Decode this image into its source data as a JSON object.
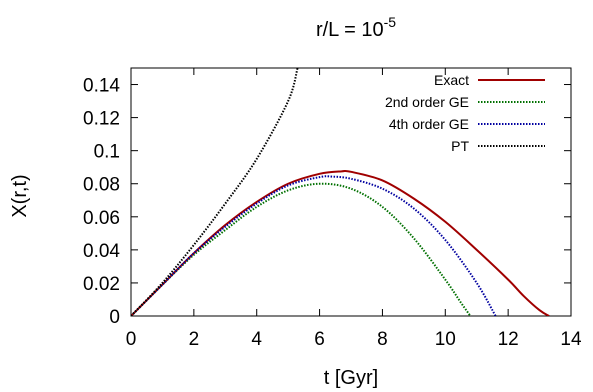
{
  "chart_data": {
    "type": "line",
    "title": "r/L = 10",
    "title_superscript": "-5",
    "xlabel": "t [Gyr]",
    "ylabel": "X(r,t)",
    "xlim": [
      0,
      14
    ],
    "ylim": [
      0,
      0.15
    ],
    "xticks": [
      0,
      2,
      4,
      6,
      8,
      10,
      12,
      14
    ],
    "yticks": [
      0,
      0.02,
      0.04,
      0.06,
      0.08,
      0.1,
      0.12,
      0.14
    ],
    "grid": false,
    "legend_position": "top-right",
    "series": [
      {
        "name": "Exact",
        "color": "#a00000",
        "style": "solid",
        "x": [
          0,
          1,
          2,
          3,
          4,
          5,
          6,
          6.7,
          7,
          8,
          9,
          10,
          11,
          12,
          12.5,
          13,
          13.3
        ],
        "y": [
          0,
          0.019,
          0.038,
          0.055,
          0.069,
          0.08,
          0.086,
          0.0875,
          0.0872,
          0.082,
          0.071,
          0.057,
          0.04,
          0.022,
          0.012,
          0.0035,
          0
        ]
      },
      {
        "name": "2nd order GE",
        "color": "#007000",
        "style": "dotted",
        "x": [
          0,
          1,
          2,
          3,
          4,
          5,
          6,
          7,
          8,
          9,
          10,
          10.5,
          10.8
        ],
        "y": [
          0,
          0.019,
          0.037,
          0.052,
          0.066,
          0.076,
          0.08,
          0.077,
          0.066,
          0.047,
          0.022,
          0.008,
          0
        ]
      },
      {
        "name": "4th order GE",
        "color": "#0000a0",
        "style": "dotted",
        "x": [
          0,
          1,
          2,
          3,
          4,
          5,
          6,
          6.4,
          7,
          8,
          9,
          10,
          11,
          11.6
        ],
        "y": [
          0,
          0.019,
          0.038,
          0.054,
          0.068,
          0.079,
          0.084,
          0.0843,
          0.083,
          0.077,
          0.065,
          0.046,
          0.02,
          0
        ]
      },
      {
        "name": "PT",
        "color": "#000000",
        "style": "dotted",
        "x": [
          0,
          1,
          2,
          3,
          4,
          5,
          5.3
        ],
        "y": [
          0,
          0.02,
          0.043,
          0.068,
          0.095,
          0.13,
          0.15
        ]
      }
    ]
  }
}
